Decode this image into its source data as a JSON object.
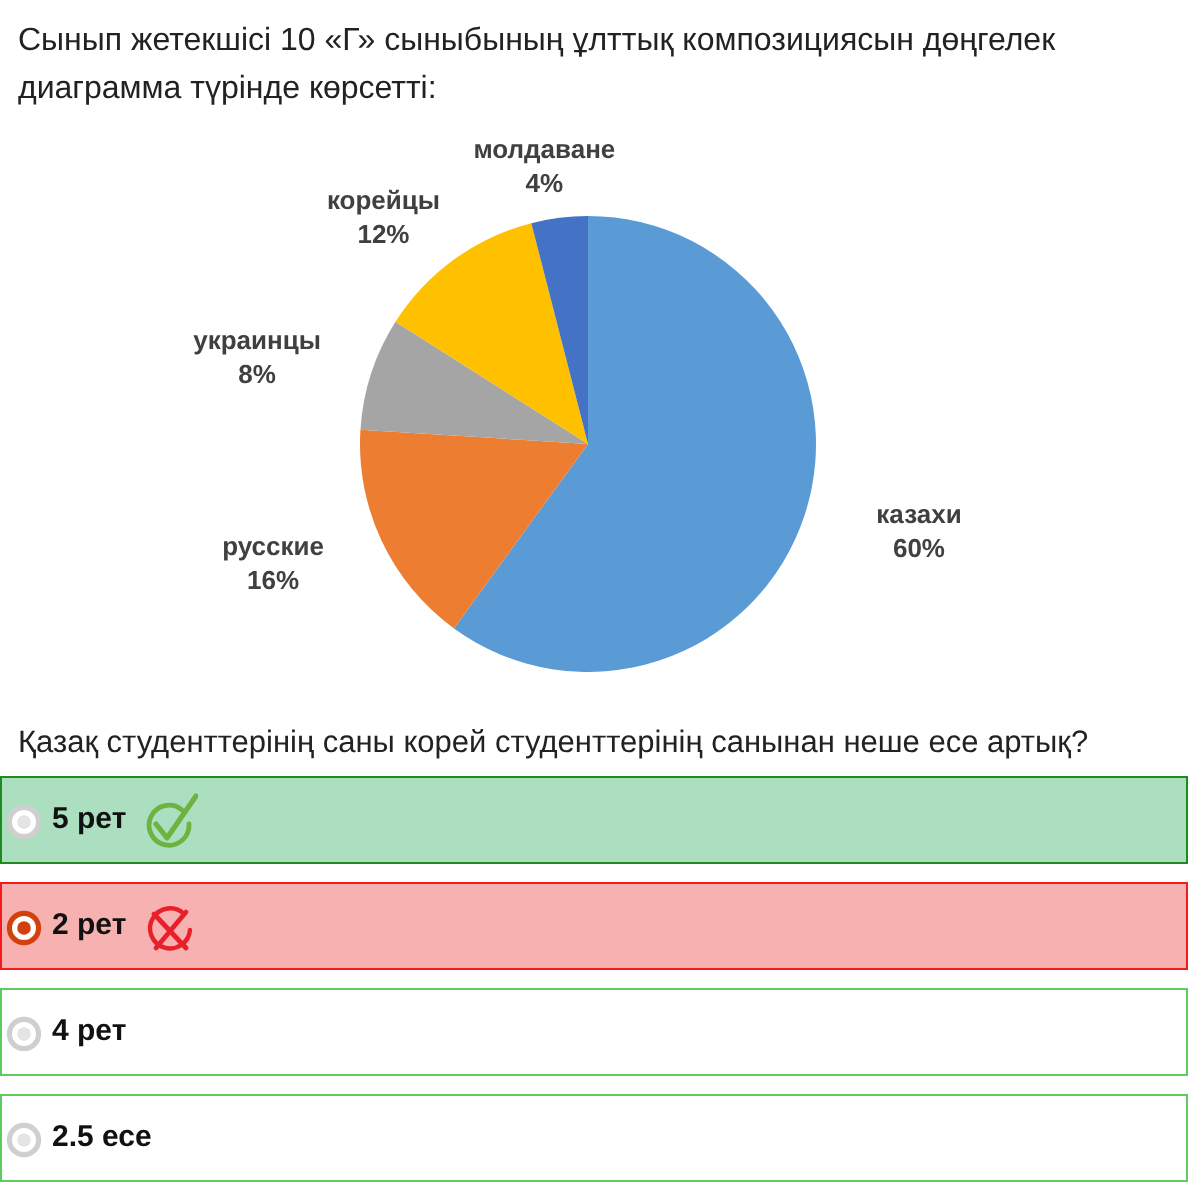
{
  "chart_data": {
    "type": "pie",
    "title": "Сынып жетекшісі 10 «Г» сыныбының ұлттық композициясын дөңгелек диаграмма түрінде көрсетті:",
    "categories": [
      "казахи",
      "русские",
      "украинцы",
      "корейцы",
      "молдаване"
    ],
    "values": [
      60,
      16,
      8,
      12,
      4
    ],
    "value_labels": [
      "60%",
      "16%",
      "8%",
      "12%",
      "4%"
    ],
    "colors": [
      "#5b9bd5",
      "#ed7d31",
      "#a5a5a5",
      "#ffc000",
      "#4472c4"
    ],
    "annotations": [
      "Қазақ студенттерінің саны корей студенттерінің санынан неше есе артық?",
      "5 рет",
      "2 рет",
      "4 рет",
      "2.5 есе"
    ]
  }
}
